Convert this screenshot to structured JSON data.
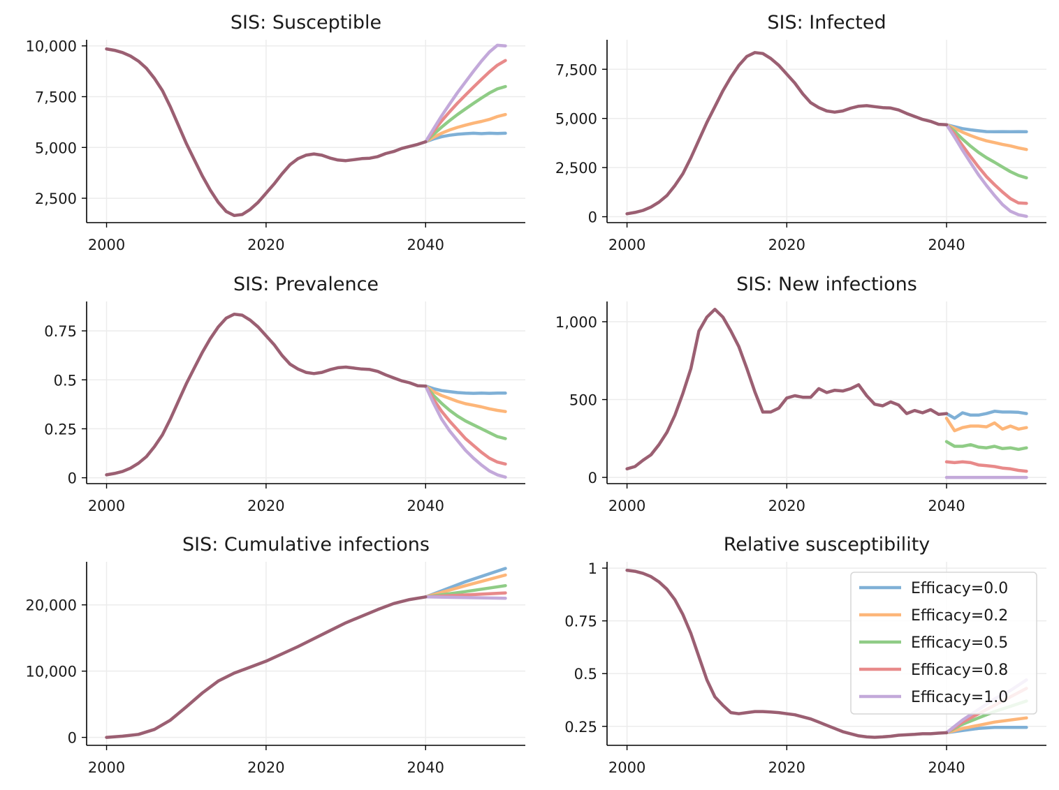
{
  "figure": {
    "legend_placement": "lower-right of last panel"
  },
  "chart_data": [
    {
      "type": "line",
      "title": "SIS: Susceptible",
      "xlabel": "",
      "ylabel": "",
      "xlim": [
        1997.5,
        2052.5
      ],
      "ylim": [
        1300,
        10300
      ],
      "xticks": [
        2000,
        2020,
        2040
      ],
      "xtick_labels": [
        "2000",
        "2020",
        "2040"
      ],
      "yticks": [
        2500,
        5000,
        7500,
        10000
      ],
      "ytick_labels": [
        "2,500",
        "5,000",
        "7,500",
        "10,000"
      ],
      "grid": true,
      "shared_x": [
        2000,
        2001,
        2002,
        2003,
        2004,
        2005,
        2006,
        2007,
        2008,
        2009,
        2010,
        2011,
        2012,
        2013,
        2014,
        2015,
        2016,
        2017,
        2018,
        2019,
        2020,
        2021,
        2022,
        2023,
        2024,
        2025,
        2026,
        2027,
        2028,
        2029,
        2030,
        2031,
        2032,
        2033,
        2034,
        2035,
        2036,
        2037,
        2038,
        2039,
        2040
      ],
      "shared_y": [
        9850,
        9780,
        9670,
        9500,
        9250,
        8900,
        8400,
        7800,
        7000,
        6100,
        5200,
        4400,
        3600,
        2900,
        2300,
        1850,
        1650,
        1700,
        1950,
        2300,
        2750,
        3200,
        3700,
        4150,
        4450,
        4620,
        4680,
        4620,
        4480,
        4380,
        4350,
        4400,
        4450,
        4470,
        4550,
        4700,
        4800,
        4950,
        5050,
        5150,
        5280
      ],
      "x": [
        2040,
        2041,
        2042,
        2043,
        2044,
        2045,
        2046,
        2047,
        2048,
        2049,
        2050
      ],
      "series": [
        {
          "name": "Efficacy=0.0",
          "values": [
            5280,
            5420,
            5530,
            5600,
            5650,
            5680,
            5700,
            5680,
            5700,
            5690,
            5700
          ]
        },
        {
          "name": "Efficacy=0.2",
          "values": [
            5280,
            5500,
            5700,
            5860,
            5990,
            6100,
            6200,
            6280,
            6380,
            6520,
            6620
          ]
        },
        {
          "name": "Efficacy=0.5",
          "values": [
            5280,
            5650,
            6000,
            6320,
            6620,
            6900,
            7170,
            7430,
            7680,
            7880,
            8000
          ]
        },
        {
          "name": "Efficacy=0.8",
          "values": [
            5280,
            5800,
            6300,
            6750,
            7180,
            7580,
            7970,
            8350,
            8720,
            9050,
            9280
          ]
        },
        {
          "name": "Efficacy=1.0",
          "values": [
            5280,
            5920,
            6550,
            7130,
            7700,
            8230,
            8750,
            9250,
            9700,
            10030,
            10000
          ]
        }
      ]
    },
    {
      "type": "line",
      "title": "SIS: Infected",
      "xlabel": "",
      "ylabel": "",
      "xlim": [
        1997.5,
        2052.5
      ],
      "ylim": [
        -300,
        9000
      ],
      "xticks": [
        2000,
        2020,
        2040
      ],
      "xtick_labels": [
        "2000",
        "2020",
        "2040"
      ],
      "yticks": [
        0,
        2500,
        5000,
        7500
      ],
      "ytick_labels": [
        "0",
        "2,500",
        "5,000",
        "7,500"
      ],
      "grid": true,
      "shared_x": [
        2000,
        2001,
        2002,
        2003,
        2004,
        2005,
        2006,
        2007,
        2008,
        2009,
        2010,
        2011,
        2012,
        2013,
        2014,
        2015,
        2016,
        2017,
        2018,
        2019,
        2020,
        2021,
        2022,
        2023,
        2024,
        2025,
        2026,
        2027,
        2028,
        2029,
        2030,
        2031,
        2032,
        2033,
        2034,
        2035,
        2036,
        2037,
        2038,
        2039,
        2040
      ],
      "shared_y": [
        150,
        220,
        320,
        490,
        740,
        1080,
        1590,
        2190,
        3000,
        3900,
        4800,
        5600,
        6400,
        7100,
        7700,
        8150,
        8350,
        8300,
        8050,
        7700,
        7250,
        6800,
        6250,
        5800,
        5550,
        5380,
        5320,
        5380,
        5520,
        5620,
        5650,
        5600,
        5550,
        5530,
        5430,
        5250,
        5100,
        4950,
        4850,
        4700,
        4680
      ],
      "x": [
        2040,
        2041,
        2042,
        2043,
        2044,
        2045,
        2046,
        2047,
        2048,
        2049,
        2050
      ],
      "series": [
        {
          "name": "Efficacy=0.0",
          "values": [
            4680,
            4580,
            4480,
            4420,
            4370,
            4330,
            4320,
            4330,
            4320,
            4330,
            4320
          ]
        },
        {
          "name": "Efficacy=0.2",
          "values": [
            4680,
            4500,
            4300,
            4130,
            3980,
            3860,
            3770,
            3680,
            3600,
            3500,
            3420
          ]
        },
        {
          "name": "Efficacy=0.5",
          "values": [
            4680,
            4350,
            3950,
            3590,
            3270,
            3000,
            2770,
            2530,
            2290,
            2100,
            1980
          ]
        },
        {
          "name": "Efficacy=0.8",
          "values": [
            4680,
            4200,
            3620,
            3060,
            2530,
            2040,
            1630,
            1260,
            920,
            700,
            680
          ]
        },
        {
          "name": "Efficacy=1.0",
          "values": [
            4680,
            4050,
            3380,
            2750,
            2130,
            1590,
            1080,
            620,
            280,
            100,
            20
          ]
        }
      ]
    },
    {
      "type": "line",
      "title": "SIS: Prevalence",
      "xlabel": "",
      "ylabel": "",
      "xlim": [
        1997.5,
        2052.5
      ],
      "ylim": [
        -0.03,
        0.9
      ],
      "xticks": [
        2000,
        2020,
        2040
      ],
      "xtick_labels": [
        "2000",
        "2020",
        "2040"
      ],
      "yticks": [
        0,
        0.25,
        0.5,
        0.75
      ],
      "ytick_labels": [
        "0",
        "0.25",
        "0.5",
        "0.75"
      ],
      "grid": true,
      "shared_x": [
        2000,
        2001,
        2002,
        2003,
        2004,
        2005,
        2006,
        2007,
        2008,
        2009,
        2010,
        2011,
        2012,
        2013,
        2014,
        2015,
        2016,
        2017,
        2018,
        2019,
        2020,
        2021,
        2022,
        2023,
        2024,
        2025,
        2026,
        2027,
        2028,
        2029,
        2030,
        2031,
        2032,
        2033,
        2034,
        2035,
        2036,
        2037,
        2038,
        2039,
        2040
      ],
      "shared_y": [
        0.015,
        0.022,
        0.032,
        0.049,
        0.074,
        0.108,
        0.159,
        0.219,
        0.3,
        0.39,
        0.48,
        0.56,
        0.64,
        0.71,
        0.77,
        0.815,
        0.835,
        0.83,
        0.805,
        0.77,
        0.725,
        0.68,
        0.625,
        0.58,
        0.555,
        0.538,
        0.532,
        0.538,
        0.552,
        0.562,
        0.565,
        0.56,
        0.555,
        0.553,
        0.543,
        0.525,
        0.51,
        0.495,
        0.485,
        0.47,
        0.468
      ],
      "x": [
        2040,
        2041,
        2042,
        2043,
        2044,
        2045,
        2046,
        2047,
        2048,
        2049,
        2050
      ],
      "series": [
        {
          "name": "Efficacy=0.0",
          "values": [
            0.468,
            0.455,
            0.445,
            0.44,
            0.435,
            0.432,
            0.431,
            0.432,
            0.431,
            0.432,
            0.432
          ]
        },
        {
          "name": "Efficacy=0.2",
          "values": [
            0.468,
            0.44,
            0.42,
            0.405,
            0.39,
            0.378,
            0.37,
            0.362,
            0.352,
            0.344,
            0.338
          ]
        },
        {
          "name": "Efficacy=0.5",
          "values": [
            0.468,
            0.42,
            0.38,
            0.345,
            0.315,
            0.29,
            0.27,
            0.25,
            0.23,
            0.21,
            0.2
          ]
        },
        {
          "name": "Efficacy=0.8",
          "values": [
            0.468,
            0.4,
            0.34,
            0.29,
            0.245,
            0.2,
            0.165,
            0.13,
            0.1,
            0.08,
            0.07
          ]
        },
        {
          "name": "Efficacy=1.0",
          "values": [
            0.468,
            0.38,
            0.3,
            0.24,
            0.19,
            0.14,
            0.1,
            0.065,
            0.035,
            0.015,
            0.003
          ]
        }
      ]
    },
    {
      "type": "line",
      "title": "SIS: New infections",
      "xlabel": "",
      "ylabel": "",
      "xlim": [
        1997.5,
        2052.5
      ],
      "ylim": [
        -40,
        1130
      ],
      "xticks": [
        2000,
        2020,
        2040
      ],
      "xtick_labels": [
        "2000",
        "2020",
        "2040"
      ],
      "yticks": [
        0,
        500,
        1000
      ],
      "ytick_labels": [
        "0",
        "500",
        "1,000"
      ],
      "grid": true,
      "shared_x": [
        2000,
        2001,
        2002,
        2003,
        2004,
        2005,
        2006,
        2007,
        2008,
        2009,
        2010,
        2011,
        2012,
        2013,
        2014,
        2015,
        2016,
        2017,
        2018,
        2019,
        2020,
        2021,
        2022,
        2023,
        2024,
        2025,
        2026,
        2027,
        2028,
        2029,
        2030,
        2031,
        2032,
        2033,
        2034,
        2035,
        2036,
        2037,
        2038,
        2039,
        2040
      ],
      "shared_y": [
        55,
        70,
        110,
        145,
        210,
        290,
        400,
        540,
        700,
        940,
        1030,
        1080,
        1030,
        940,
        840,
        700,
        550,
        420,
        420,
        445,
        510,
        525,
        515,
        515,
        570,
        545,
        560,
        555,
        570,
        595,
        525,
        470,
        460,
        485,
        465,
        410,
        430,
        415,
        435,
        405,
        410
      ],
      "x": [
        2040,
        2041,
        2042,
        2043,
        2044,
        2045,
        2046,
        2047,
        2048,
        2049,
        2050
      ],
      "series": [
        {
          "name": "Efficacy=0.0",
          "values": [
            410,
            380,
            415,
            400,
            400,
            410,
            425,
            420,
            420,
            418,
            410
          ]
        },
        {
          "name": "Efficacy=0.2",
          "values": [
            380,
            300,
            320,
            330,
            330,
            325,
            350,
            310,
            330,
            310,
            320
          ]
        },
        {
          "name": "Efficacy=0.5",
          "values": [
            230,
            200,
            200,
            210,
            195,
            190,
            200,
            185,
            190,
            180,
            190
          ]
        },
        {
          "name": "Efficacy=0.8",
          "values": [
            100,
            95,
            100,
            95,
            80,
            75,
            70,
            60,
            55,
            45,
            40
          ]
        },
        {
          "name": "Efficacy=1.0",
          "values": [
            0,
            0,
            0,
            0,
            0,
            0,
            0,
            0,
            0,
            0,
            0
          ]
        }
      ]
    },
    {
      "type": "line",
      "title": "SIS: Cumulative infections",
      "xlabel": "",
      "ylabel": "",
      "xlim": [
        1997.5,
        2052.5
      ],
      "ylim": [
        -1200,
        26500
      ],
      "xticks": [
        2000,
        2020,
        2040
      ],
      "xtick_labels": [
        "2000",
        "2020",
        "2040"
      ],
      "yticks": [
        0,
        10000,
        20000
      ],
      "ytick_labels": [
        "0",
        "10,000",
        "20,000"
      ],
      "grid": true,
      "shared_x": [
        2000,
        2002,
        2004,
        2006,
        2008,
        2010,
        2012,
        2014,
        2016,
        2018,
        2020,
        2022,
        2024,
        2026,
        2028,
        2030,
        2032,
        2034,
        2036,
        2038,
        2040
      ],
      "shared_y": [
        0,
        180,
        450,
        1200,
        2600,
        4600,
        6700,
        8500,
        9700,
        10600,
        11500,
        12600,
        13700,
        14900,
        16100,
        17300,
        18300,
        19300,
        20200,
        20800,
        21200
      ],
      "x": [
        2040,
        2045,
        2050
      ],
      "series": [
        {
          "name": "Efficacy=0.0",
          "values": [
            21200,
            23500,
            25500
          ]
        },
        {
          "name": "Efficacy=0.2",
          "values": [
            21200,
            22900,
            24500
          ]
        },
        {
          "name": "Efficacy=0.5",
          "values": [
            21200,
            22000,
            22900
          ]
        },
        {
          "name": "Efficacy=0.8",
          "values": [
            21200,
            21500,
            21800
          ]
        },
        {
          "name": "Efficacy=1.0",
          "values": [
            21200,
            21100,
            21000
          ]
        }
      ]
    },
    {
      "type": "line",
      "title": "Relative susceptibility",
      "xlabel": "",
      "ylabel": "",
      "xlim": [
        1997.5,
        2052.5
      ],
      "ylim": [
        0.16,
        1.03
      ],
      "xticks": [
        2000,
        2020,
        2040
      ],
      "xtick_labels": [
        "2000",
        "2020",
        "2040"
      ],
      "yticks": [
        0.25,
        0.5,
        0.75,
        1
      ],
      "ytick_labels": [
        "0.25",
        "0.5",
        "0.75",
        "1"
      ],
      "grid": true,
      "legend": {
        "placement": "lower right",
        "entries": [
          "Efficacy=0.0",
          "Efficacy=0.2",
          "Efficacy=0.5",
          "Efficacy=0.8",
          "Efficacy=1.0"
        ]
      },
      "shared_x": [
        2000,
        2001,
        2002,
        2003,
        2004,
        2005,
        2006,
        2007,
        2008,
        2009,
        2010,
        2011,
        2012,
        2013,
        2014,
        2015,
        2016,
        2017,
        2018,
        2019,
        2020,
        2021,
        2022,
        2023,
        2024,
        2025,
        2026,
        2027,
        2028,
        2029,
        2030,
        2031,
        2032,
        2033,
        2034,
        2035,
        2036,
        2037,
        2038,
        2039,
        2040
      ],
      "shared_y": [
        0.99,
        0.985,
        0.975,
        0.96,
        0.935,
        0.9,
        0.85,
        0.78,
        0.69,
        0.58,
        0.47,
        0.39,
        0.35,
        0.315,
        0.31,
        0.315,
        0.32,
        0.32,
        0.318,
        0.315,
        0.31,
        0.305,
        0.295,
        0.285,
        0.27,
        0.255,
        0.24,
        0.225,
        0.215,
        0.205,
        0.2,
        0.198,
        0.2,
        0.203,
        0.208,
        0.21,
        0.212,
        0.215,
        0.215,
        0.218,
        0.22
      ],
      "x": [
        2040,
        2042,
        2044,
        2046,
        2048,
        2050
      ],
      "series": [
        {
          "name": "Efficacy=0.0",
          "values": [
            0.22,
            0.23,
            0.24,
            0.245,
            0.245,
            0.245
          ]
        },
        {
          "name": "Efficacy=0.2",
          "values": [
            0.22,
            0.24,
            0.255,
            0.27,
            0.28,
            0.29
          ]
        },
        {
          "name": "Efficacy=0.5",
          "values": [
            0.22,
            0.26,
            0.29,
            0.32,
            0.345,
            0.37
          ]
        },
        {
          "name": "Efficacy=0.8",
          "values": [
            0.22,
            0.27,
            0.31,
            0.35,
            0.39,
            0.43
          ]
        },
        {
          "name": "Efficacy=1.0",
          "values": [
            0.22,
            0.28,
            0.33,
            0.38,
            0.42,
            0.47
          ]
        }
      ]
    }
  ],
  "colors": {
    "Efficacy=0.0": "#7fb0d6",
    "Efficacy=0.2": "#fdb679",
    "Efficacy=0.5": "#8fcc86",
    "Efficacy=0.8": "#e88a8a",
    "Efficacy=1.0": "#c3a9da",
    "shared": "#9b5f72"
  }
}
